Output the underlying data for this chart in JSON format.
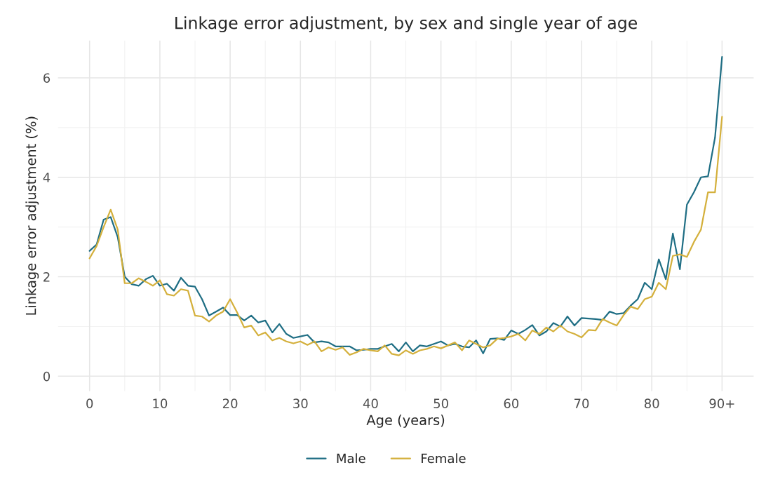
{
  "chart_data": {
    "type": "line",
    "title": "Linkage error adjustment, by sex and single year of age",
    "xlabel": "Age (years)",
    "ylabel": "Linkage error adjustment (%)",
    "x": [
      0,
      1,
      2,
      3,
      4,
      5,
      6,
      7,
      8,
      9,
      10,
      11,
      12,
      13,
      14,
      15,
      16,
      17,
      18,
      19,
      20,
      21,
      22,
      23,
      24,
      25,
      26,
      27,
      28,
      29,
      30,
      31,
      32,
      33,
      34,
      35,
      36,
      37,
      38,
      39,
      40,
      41,
      42,
      43,
      44,
      45,
      46,
      47,
      48,
      49,
      50,
      51,
      52,
      53,
      54,
      55,
      56,
      57,
      58,
      59,
      60,
      61,
      62,
      63,
      64,
      65,
      66,
      67,
      68,
      69,
      70,
      71,
      72,
      73,
      74,
      75,
      76,
      77,
      78,
      79,
      80,
      81,
      82,
      83,
      84,
      85,
      86,
      87,
      88,
      89,
      90
    ],
    "series": [
      {
        "name": "Male",
        "color": "#1f6e84",
        "values": [
          2.52,
          2.65,
          3.15,
          3.2,
          2.8,
          2.0,
          1.85,
          1.82,
          1.95,
          2.02,
          1.82,
          1.86,
          1.72,
          1.98,
          1.82,
          1.8,
          1.55,
          1.22,
          1.3,
          1.38,
          1.23,
          1.23,
          1.12,
          1.22,
          1.08,
          1.12,
          0.88,
          1.05,
          0.85,
          0.77,
          0.8,
          0.83,
          0.68,
          0.7,
          0.68,
          0.6,
          0.6,
          0.6,
          0.52,
          0.53,
          0.55,
          0.55,
          0.6,
          0.65,
          0.5,
          0.68,
          0.5,
          0.62,
          0.6,
          0.65,
          0.7,
          0.62,
          0.65,
          0.6,
          0.58,
          0.72,
          0.46,
          0.75,
          0.76,
          0.73,
          0.92,
          0.85,
          0.93,
          1.03,
          0.82,
          0.9,
          1.07,
          1.0,
          1.2,
          1.02,
          1.17,
          1.16,
          1.15,
          1.13,
          1.3,
          1.25,
          1.27,
          1.42,
          1.55,
          1.88,
          1.75,
          2.35,
          1.95,
          2.87,
          2.15,
          3.45,
          3.7,
          4.0,
          4.02,
          4.8,
          6.42
        ]
      },
      {
        "name": "Female",
        "color": "#d4b03c",
        "values": [
          2.37,
          2.62,
          3.0,
          3.35,
          2.95,
          1.87,
          1.87,
          1.97,
          1.9,
          1.82,
          1.93,
          1.65,
          1.62,
          1.75,
          1.72,
          1.22,
          1.2,
          1.1,
          1.22,
          1.3,
          1.55,
          1.28,
          0.98,
          1.02,
          0.82,
          0.88,
          0.72,
          0.77,
          0.7,
          0.66,
          0.7,
          0.63,
          0.7,
          0.5,
          0.58,
          0.53,
          0.58,
          0.43,
          0.48,
          0.55,
          0.52,
          0.5,
          0.62,
          0.45,
          0.42,
          0.52,
          0.45,
          0.52,
          0.55,
          0.6,
          0.56,
          0.62,
          0.68,
          0.52,
          0.72,
          0.65,
          0.58,
          0.62,
          0.75,
          0.77,
          0.8,
          0.85,
          0.72,
          0.92,
          0.85,
          0.98,
          0.9,
          1.02,
          0.9,
          0.85,
          0.78,
          0.93,
          0.92,
          1.15,
          1.08,
          1.02,
          1.23,
          1.4,
          1.35,
          1.55,
          1.6,
          1.88,
          1.75,
          2.42,
          2.45,
          2.4,
          2.7,
          2.95,
          3.7,
          3.7,
          5.22
        ]
      }
    ],
    "xlim": [
      -4.5,
      94.5
    ],
    "xticks": [
      0,
      10,
      20,
      30,
      40,
      50,
      60,
      70,
      80,
      {
        "value": 90,
        "label": "90+"
      }
    ],
    "ylim": [
      -0.3,
      6.75
    ],
    "yticks": [
      0,
      2,
      4,
      6
    ],
    "grid": true,
    "legend": "bottom",
    "line_style": "solid",
    "marker": "none"
  }
}
